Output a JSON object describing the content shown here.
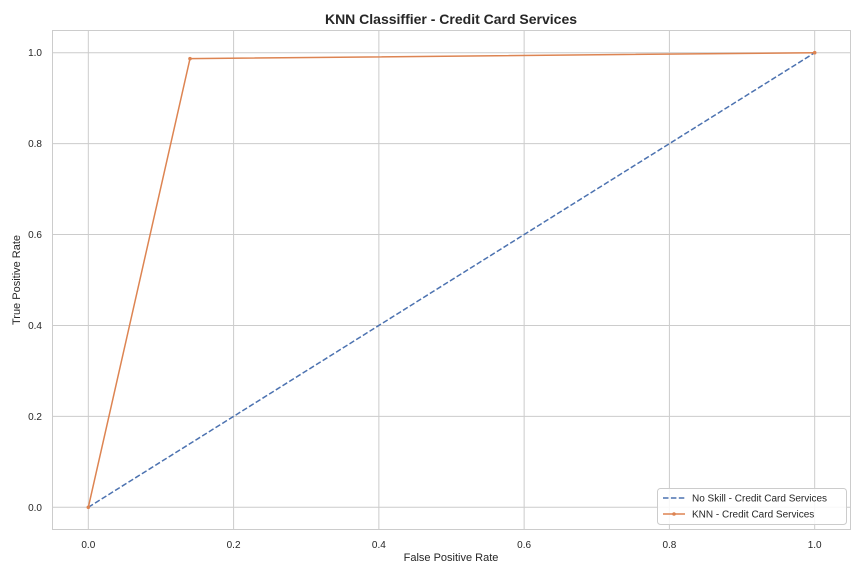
{
  "chart_data": {
    "type": "line",
    "title": "KNN Classiffier - Credit Card Services",
    "xlabel": "False Positive Rate",
    "ylabel": "True Positive Rate",
    "xlim": [
      -0.05,
      1.05
    ],
    "ylim": [
      -0.05,
      1.05
    ],
    "xticks": [
      0.0,
      0.2,
      0.4,
      0.6,
      0.8,
      1.0
    ],
    "yticks": [
      0.0,
      0.2,
      0.4,
      0.6,
      0.8,
      1.0
    ],
    "xtick_labels": [
      "0.0",
      "0.2",
      "0.4",
      "0.6",
      "0.8",
      "1.0"
    ],
    "ytick_labels": [
      "0.0",
      "0.2",
      "0.4",
      "0.6",
      "0.8",
      "1.0"
    ],
    "grid": true,
    "legend_position": "bottom-right",
    "series": [
      {
        "name": "No Skill - Credit Card Services",
        "style": "dashed",
        "marker": "none",
        "color": "#4c72b0",
        "x": [
          0.0,
          1.0
        ],
        "y": [
          0.0,
          1.0
        ]
      },
      {
        "name": "KNN - Credit Card Services",
        "style": "solid",
        "marker": "dot",
        "color": "#dd8452",
        "x": [
          0.0,
          0.14,
          1.0
        ],
        "y": [
          0.0,
          0.987,
          1.0
        ]
      }
    ]
  }
}
